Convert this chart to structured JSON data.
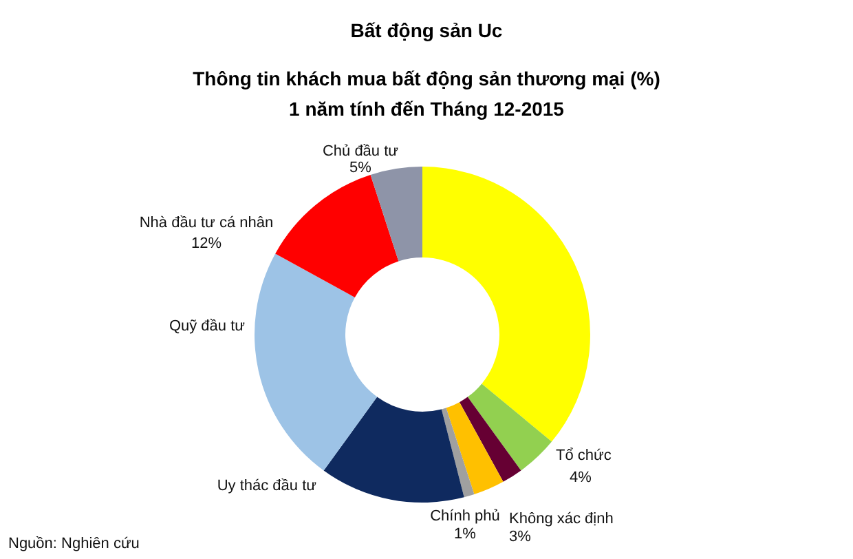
{
  "chart_data": {
    "type": "donut",
    "title": "Bất động sản Uc",
    "subtitle": "Thông tin khách mua bất động sản thương mại (%)\n1 năm tính đến Tháng 12-2015",
    "categories": [
      null,
      "Tổ chức",
      null,
      "Không xác định",
      "Chính phủ",
      "Uy thác đầu tư",
      "Quỹ đầu tư",
      "Nhà đầu tư cá nhân",
      "Chủ đầu tư"
    ],
    "values": [
      36,
      4,
      2,
      3,
      1,
      14,
      23,
      12,
      5
    ],
    "colors": [
      "#ffff00",
      "#92d050",
      "#660033",
      "#ffc000",
      "#a0a0a0",
      "#0f2a5f",
      "#9dc3e6",
      "#ff0000",
      "#8e94a8"
    ],
    "value_labels": [
      null,
      "4%",
      null,
      "3%",
      "1%",
      null,
      null,
      "12%",
      "5%"
    ],
    "annotations": [
      "Nguồn: Nghiên cứu"
    ]
  }
}
